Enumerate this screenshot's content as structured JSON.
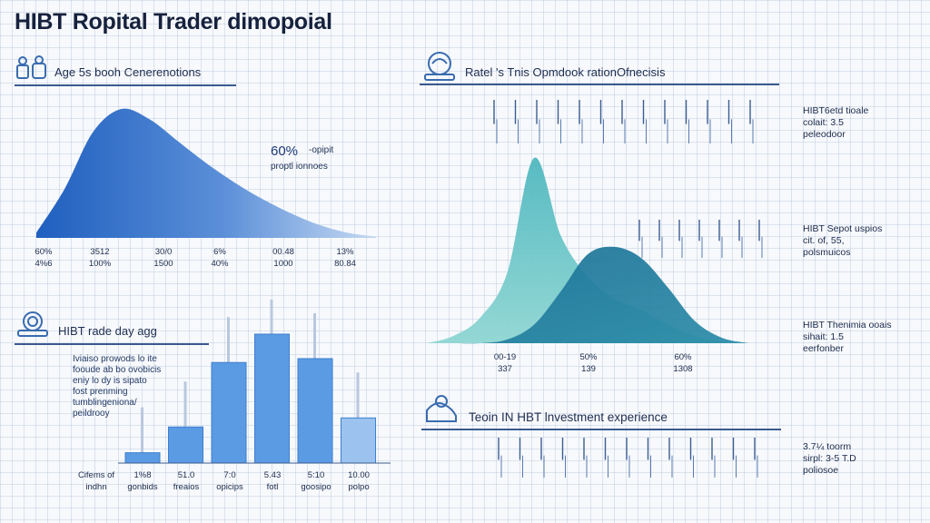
{
  "page": {
    "title": "HIBT Ropital Trader dimopoial"
  },
  "sections": {
    "age": {
      "heading": "Age 5s booh Cenerenotions",
      "callout_value": "60%",
      "callout_text": [
        "-opipit",
        "proptl ionnoes"
      ],
      "x_labels": [
        {
          "top": "60%",
          "bottom": "4%6"
        },
        {
          "top": "3512",
          "bottom": "100%"
        },
        {
          "top": "30/0",
          "bottom": "1500"
        },
        {
          "top": "6%",
          "bottom": "40%"
        },
        {
          "top": "00.48",
          "bottom": "1000"
        },
        {
          "top": "13%",
          "bottom": "80.84"
        }
      ]
    },
    "trade": {
      "heading": "HIBT rade day agg",
      "note": [
        "Iviaiso prowods lo ite",
        "fooude ab bo ovobicis",
        "eniy lo dy is sipato",
        "fost prenming",
        "tumblingeniona/",
        "peildrooy"
      ],
      "x_labels": [
        {
          "top": "Cifems of",
          "bottom": "indhn"
        },
        {
          "top": "1%8",
          "bottom": "gonbids"
        },
        {
          "top": "51.0",
          "bottom": "freaios"
        },
        {
          "top": "7:0",
          "bottom": "opicips"
        },
        {
          "top": "5.43",
          "bottom": "fotl"
        },
        {
          "top": "5:10",
          "bottom": "goosipo"
        },
        {
          "top": "10.00",
          "bottom": "polpo"
        }
      ]
    },
    "retail": {
      "heading": "Ratel 's Tnis Opmdook rationOfnecisis",
      "x_labels": [
        {
          "top": "00-19",
          "bottom": "337"
        },
        {
          "top": "50%",
          "bottom": "139"
        },
        {
          "top": "60%",
          "bottom": "1308"
        }
      ]
    },
    "investment": {
      "heading": "Teoin IN HBT lnvestment experience"
    }
  },
  "side_notes": [
    {
      "lines": [
        "HIBT6etd tioale",
        "colait: 3.5",
        "peleodoor"
      ]
    },
    {
      "lines": [
        "HIBT Sepot uspios",
        "cit. of, 55,",
        "polsmuicos"
      ]
    },
    {
      "lines": [
        "HIBT Thenimia ooais",
        "sihait: 1.5",
        "eerfonber"
      ]
    },
    {
      "lines": [
        "3.7¼ toorm",
        "sirpl: 3-5 T.D",
        "poliosoe"
      ]
    }
  ],
  "chart_data": [
    {
      "type": "area",
      "title": "Age 5s booh Cenerenotions",
      "description_shape": "right-skewed distribution",
      "x": [
        0,
        1,
        2,
        3,
        4,
        5,
        6,
        7,
        8,
        9,
        10,
        11,
        12
      ],
      "values": [
        4,
        38,
        82,
        100,
        92,
        75,
        58,
        43,
        30,
        19,
        10,
        4,
        1
      ],
      "ylim": [
        0,
        100
      ],
      "color": "#2f6fca"
    },
    {
      "type": "bar",
      "title": "HIBT rade day agg",
      "categories": [
        "1%8",
        "51.0",
        "7:0",
        "5.43",
        "5:10",
        "10.00"
      ],
      "values": [
        8,
        28,
        78,
        100,
        81,
        35
      ],
      "ylim": [
        0,
        100
      ],
      "color": "#5b9be3"
    },
    {
      "type": "area",
      "title": "Ratel 's Tnis Opmdook rationOfnecisis",
      "series": [
        {
          "values": [
            0,
            4,
            14,
            38,
            100,
            58,
            36,
            24,
            18,
            10,
            4,
            1,
            0
          ],
          "color": "#62c0c6"
        },
        {
          "values": [
            0,
            0,
            0,
            2,
            10,
            28,
            48,
            52,
            46,
            30,
            12,
            3,
            0
          ],
          "color": "#1f7b9c"
        }
      ],
      "ylim": [
        0,
        100
      ]
    }
  ]
}
